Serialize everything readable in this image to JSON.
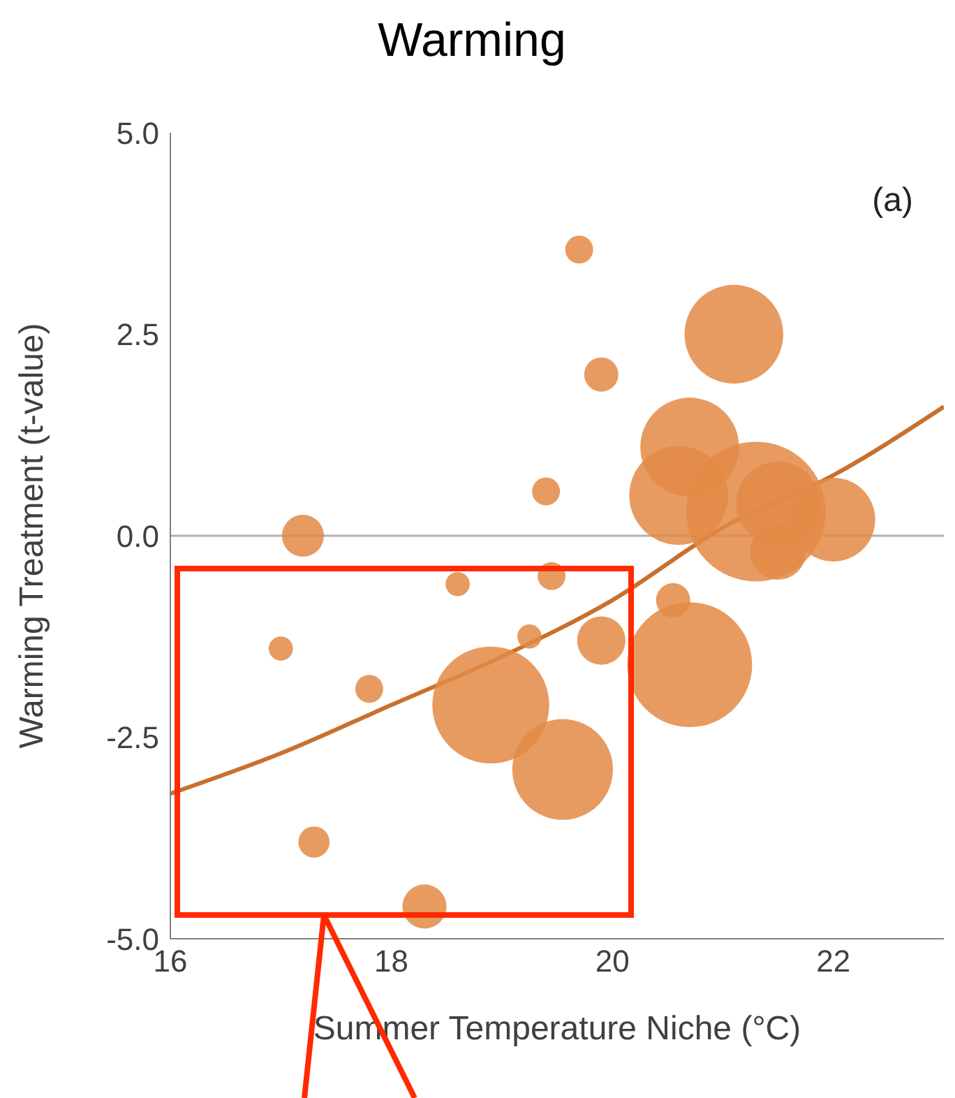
{
  "chart_data": {
    "type": "bubble",
    "title": "Warming",
    "xlabel": "Summer Temperature Niche (°C)",
    "ylabel": "Warming Treatment (t-value)",
    "annotations": [
      "(a)"
    ],
    "series": [
      {
        "color": "#e38a45",
        "x": [
          17.2,
          17.0,
          17.8,
          17.3,
          18.3,
          18.6,
          18.9,
          19.55,
          19.25,
          19.45,
          19.4,
          19.7,
          19.9,
          19.9,
          20.55,
          20.7,
          20.7,
          20.6,
          21.1,
          21.3,
          21.5,
          21.5,
          22.0
        ],
        "values": [
          0.0,
          -1.4,
          -1.9,
          -3.8,
          -4.6,
          -0.6,
          -2.1,
          -2.9,
          -1.25,
          -0.5,
          0.55,
          3.55,
          2.0,
          -1.3,
          -0.8,
          -1.6,
          1.1,
          0.5,
          2.5,
          0.3,
          0.4,
          -0.2,
          0.2
        ],
        "sizes": [
          0.09,
          0.03,
          0.04,
          0.05,
          0.1,
          0.03,
          0.7,
          0.52,
          0.03,
          0.04,
          0.04,
          0.04,
          0.06,
          0.12,
          0.06,
          0.8,
          0.5,
          0.5,
          0.5,
          1,
          0.36,
          0.16,
          0.36
        ]
      },
      {
        "type": "line",
        "color": "#c8702e",
        "x": [
          16,
          17,
          18,
          19,
          20,
          21,
          22,
          23
        ],
        "values": [
          -3.2,
          -2.7,
          -2.1,
          -1.5,
          -0.8,
          0.1,
          0.75,
          1.6
        ]
      }
    ],
    "xlim": [
      16,
      23
    ],
    "xticks": [
      16,
      18,
      20,
      22
    ],
    "ylim": [
      -5,
      5
    ],
    "yticks": [
      {
        "value": -5,
        "label": "-5.0"
      },
      {
        "value": -2.5,
        "label": "-2.5"
      },
      {
        "value": 0,
        "label": "0.0"
      },
      {
        "value": 2.5,
        "label": "2.5"
      },
      {
        "value": 5,
        "label": "5.0"
      }
    ],
    "ref_lines": [
      {
        "axis": "y",
        "value": 0,
        "color": "#b0b0b0"
      }
    ],
    "grid": false,
    "legend": false
  }
}
